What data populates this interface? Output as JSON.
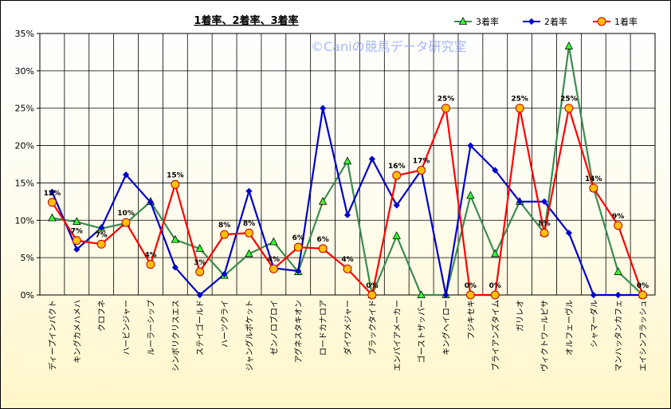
{
  "chart_data": {
    "type": "line",
    "title": "1着率、2着率、3着率",
    "watermark": "©Caniの競馬データ研究室",
    "ylim": [
      0,
      35
    ],
    "yticks": [
      "0%",
      "5%",
      "10%",
      "15%",
      "20%",
      "25%",
      "30%",
      "35%"
    ],
    "grid": true,
    "legend_position": "top-right",
    "categories": [
      "ディープインパクト",
      "キングカメハメハ",
      "クロフネ",
      "ハービンジャー",
      "ルーラーシップ",
      "シンボリクリスエス",
      "ステイゴールド",
      "ハーツクライ",
      "ジャングルポケット",
      "ゼンノロブロイ",
      "アグネスタキオン",
      "ロードカナロア",
      "ダイワメジャー",
      "ブラックタイド",
      "エンパイアメーカー",
      "ゴーストザッパー",
      "キングヘイロー",
      "フジキセキ",
      "ブライアンズタイム",
      "ガリレオ",
      "ヴィクトワールピサ",
      "オルフェーヴル",
      "シャマーダル",
      "マンハッタンカフェ",
      "エイシンフラッシュ"
    ],
    "series": [
      {
        "name": "3着率",
        "color": "#3a8c50",
        "marker": "triangle",
        "marker_color": "#33ff33",
        "values": [
          10.3,
          9.8,
          8.9,
          9.6,
          12.5,
          7.4,
          6.2,
          2.6,
          5.5,
          7.1,
          3.1,
          12.5,
          17.9,
          0,
          7.9,
          0,
          0,
          13.3,
          5.5,
          12.5,
          8.3,
          33.3,
          14.3,
          3.1,
          0
        ]
      },
      {
        "name": "2着率",
        "color": "#0000cc",
        "marker": "diamond",
        "marker_color": "#0000cc",
        "values": [
          13.8,
          6.1,
          9.0,
          16.1,
          12.4,
          3.7,
          0,
          2.8,
          13.9,
          3.6,
          3.2,
          25.0,
          10.7,
          18.2,
          12.0,
          16.7,
          0,
          20.0,
          16.7,
          12.5,
          12.5,
          8.3,
          0,
          0,
          0
        ]
      },
      {
        "name": "1着率",
        "color": "#ff0000",
        "marker": "circle",
        "marker_color": "#ffc000",
        "values": [
          12.4,
          7.3,
          6.8,
          9.7,
          4.1,
          14.8,
          3.1,
          8.1,
          8.3,
          3.5,
          6.4,
          6.2,
          3.5,
          0,
          16.0,
          16.7,
          25.0,
          0,
          0,
          25.0,
          8.3,
          25.0,
          14.3,
          9.3,
          0
        ]
      }
    ],
    "data_labels": [
      "12%",
      "7%",
      "7%",
      "10%",
      "4%",
      "15%",
      "3%",
      "8%",
      "8%",
      "4%",
      "6%",
      "6%",
      "4%",
      "0%",
      "16%",
      "17%",
      "25%",
      "0%",
      "0%",
      "25%",
      "8%",
      "25%",
      "14%",
      "9%",
      "0%"
    ]
  }
}
